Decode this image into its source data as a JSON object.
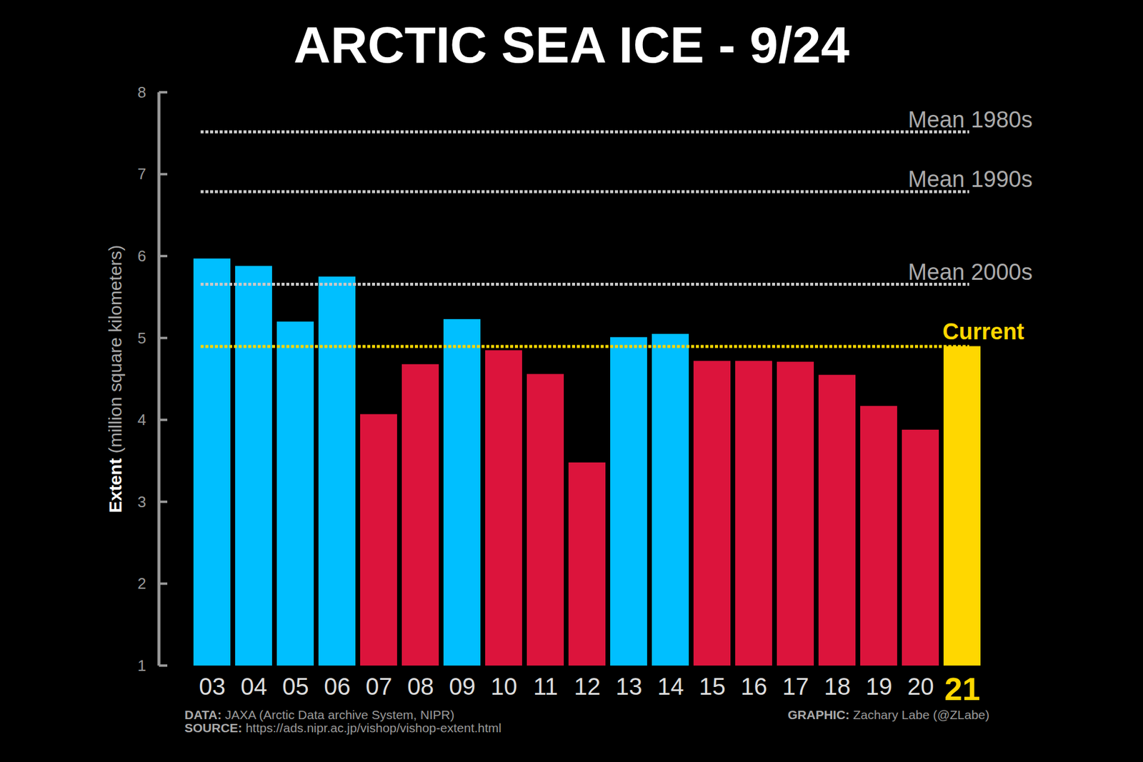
{
  "chart_data": {
    "type": "bar",
    "title": "ARCTIC SEA ICE - 9/24",
    "y_label": "Extent (million square kilometers)",
    "categories": [
      "03",
      "04",
      "05",
      "06",
      "07",
      "08",
      "09",
      "10",
      "11",
      "12",
      "13",
      "14",
      "15",
      "16",
      "17",
      "18",
      "19",
      "20",
      "21"
    ],
    "values": [
      5.97,
      5.88,
      5.2,
      5.75,
      4.07,
      4.68,
      5.23,
      4.85,
      4.56,
      3.48,
      5.01,
      5.05,
      4.72,
      4.72,
      4.71,
      4.55,
      4.17,
      3.88,
      4.9
    ],
    "colors": [
      "#00bfff",
      "#00bfff",
      "#00bfff",
      "#00bfff",
      "#dc143c",
      "#dc143c",
      "#00bfff",
      "#dc143c",
      "#dc143c",
      "#dc143c",
      "#00bfff",
      "#00bfff",
      "#dc143c",
      "#dc143c",
      "#dc143c",
      "#dc143c",
      "#dc143c",
      "#dc143c",
      "#ffd700"
    ],
    "ylim": [
      1,
      8
    ],
    "yticks": [
      1,
      2,
      3,
      4,
      5,
      6,
      7,
      8
    ],
    "grid": false,
    "reference_lines": [
      {
        "label": "Mean 1980s",
        "value": 7.52,
        "color": "#c8c8c8"
      },
      {
        "label": "Mean 1990s",
        "value": 6.79,
        "color": "#c8c8c8"
      },
      {
        "label": "Mean 2000s",
        "value": 5.66,
        "color": "#c8c8c8"
      },
      {
        "label": "Current",
        "value": 4.9,
        "color": "#ffd700"
      }
    ],
    "footnotes": [
      {
        "label": "DATA:",
        "text": "JAXA (Arctic Data archive System, NIPR)"
      },
      {
        "label": "SOURCE:",
        "text": "https://ads.nipr.ac.jp/vishop/vishop-extent.html"
      }
    ],
    "credit": {
      "label": "GRAPHIC:",
      "text": "Zachary Labe (@ZLabe)"
    }
  }
}
